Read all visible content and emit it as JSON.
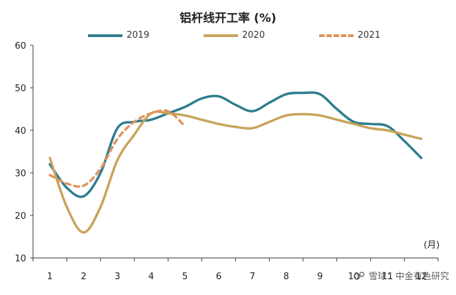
{
  "chart_data": {
    "type": "line",
    "title": "铝杆线开工率 (%)",
    "unit_label": "(月)",
    "x_ticks": [
      "1",
      "2",
      "3",
      "4",
      "5",
      "6",
      "7",
      "8",
      "9",
      "10",
      "11",
      "12"
    ],
    "ylim": [
      10,
      60
    ],
    "yticks": [
      10,
      20,
      30,
      40,
      50,
      60
    ],
    "grid": false,
    "legend_position": "top",
    "series": [
      {
        "name": "2019",
        "color": "#2e7d8e",
        "style": "solid",
        "points": [
          [
            1,
            32.0
          ],
          [
            1.5,
            26.5
          ],
          [
            2,
            24.5
          ],
          [
            2.5,
            30.0
          ],
          [
            3,
            40.5
          ],
          [
            3.5,
            42.0
          ],
          [
            4,
            42.5
          ],
          [
            4.5,
            44.0
          ],
          [
            5,
            45.5
          ],
          [
            5.5,
            47.5
          ],
          [
            6,
            48.0
          ],
          [
            6.5,
            46.0
          ],
          [
            7,
            44.5
          ],
          [
            7.5,
            46.5
          ],
          [
            8,
            48.5
          ],
          [
            8.5,
            48.8
          ],
          [
            9,
            48.5
          ],
          [
            9.5,
            45.0
          ],
          [
            10,
            42.0
          ],
          [
            10.5,
            41.5
          ],
          [
            11,
            41.0
          ],
          [
            11.5,
            37.5
          ],
          [
            12,
            33.5
          ]
        ]
      },
      {
        "name": "2020",
        "color": "#c9a35a",
        "style": "solid",
        "points": [
          [
            1,
            33.5
          ],
          [
            1.5,
            22.0
          ],
          [
            2,
            16.0
          ],
          [
            2.5,
            22.0
          ],
          [
            3,
            33.0
          ],
          [
            3.5,
            39.0
          ],
          [
            4,
            44.0
          ],
          [
            4.5,
            44.0
          ],
          [
            5,
            43.5
          ],
          [
            5.5,
            42.5
          ],
          [
            6,
            41.5
          ],
          [
            6.5,
            40.8
          ],
          [
            7,
            40.5
          ],
          [
            7.5,
            42.0
          ],
          [
            8,
            43.5
          ],
          [
            8.5,
            43.8
          ],
          [
            9,
            43.5
          ],
          [
            9.5,
            42.5
          ],
          [
            10,
            41.5
          ],
          [
            10.5,
            40.5
          ],
          [
            11,
            40.0
          ],
          [
            11.5,
            39.0
          ],
          [
            12,
            38.0
          ]
        ]
      },
      {
        "name": "2021",
        "color": "#e0945c",
        "style": "dashed",
        "points": [
          [
            1,
            29.5
          ],
          [
            1.5,
            27.5
          ],
          [
            2,
            27.0
          ],
          [
            2.5,
            31.0
          ],
          [
            3,
            38.0
          ],
          [
            3.5,
            42.0
          ],
          [
            4,
            44.0
          ],
          [
            4.5,
            44.5
          ],
          [
            5,
            41.0
          ]
        ]
      }
    ]
  },
  "watermark": {
    "text": "雪球：中金有色研究"
  }
}
